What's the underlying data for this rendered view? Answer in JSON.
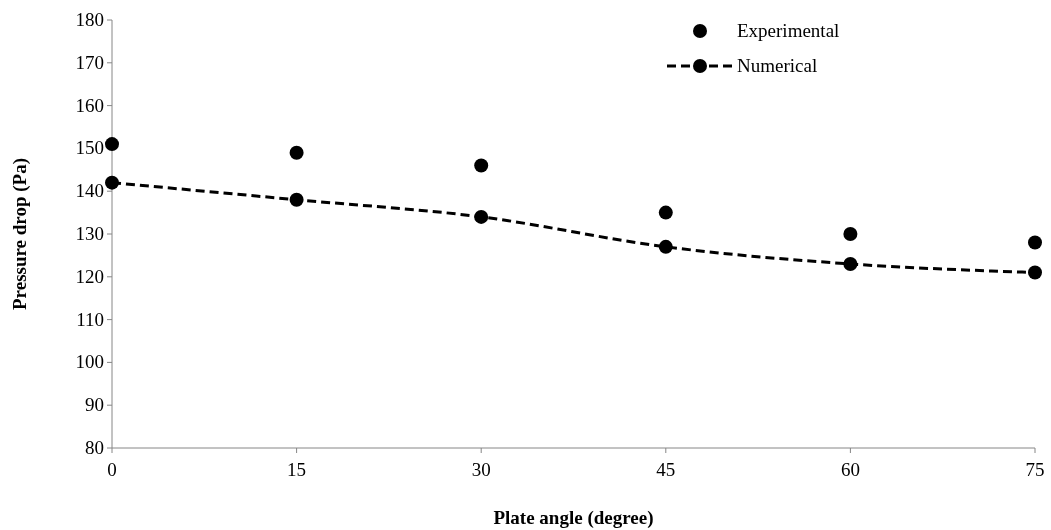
{
  "chart_data": {
    "type": "line",
    "xlabel": "Plate angle (degree)",
    "ylabel": "Pressure drop (Pa)",
    "x": [
      0,
      15,
      30,
      45,
      60,
      75
    ],
    "series": [
      {
        "name": "Experimental",
        "type": "scatter",
        "color": "#000000",
        "values": [
          151,
          149,
          146,
          135,
          130,
          128
        ]
      },
      {
        "name": "Numerical",
        "color": "#000000",
        "line_style": "dashed",
        "values": [
          142,
          138,
          134,
          127,
          123,
          121
        ]
      }
    ],
    "xlim": [
      0,
      75
    ],
    "xticks": [
      0,
      15,
      30,
      45,
      60,
      75
    ],
    "ylim": [
      80,
      180
    ],
    "yticks": [
      80,
      90,
      100,
      110,
      120,
      130,
      140,
      150,
      160,
      170,
      180
    ],
    "marker": "circle",
    "legend": "top right"
  }
}
